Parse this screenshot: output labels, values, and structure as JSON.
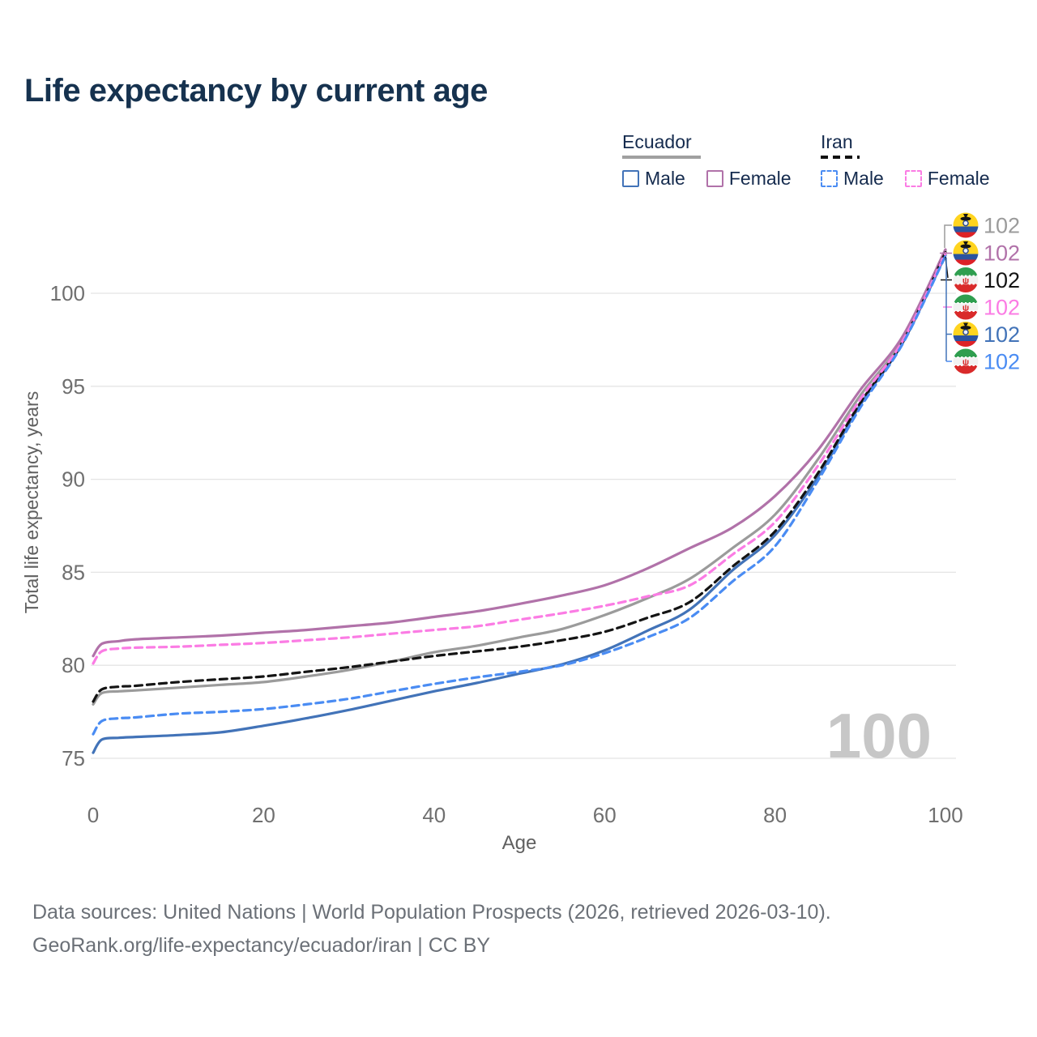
{
  "title": "Life expectancy by current age",
  "legend": {
    "groups": [
      {
        "label": "Ecuador",
        "line_style": "solid",
        "underline_color": "#a0a0a0",
        "items": [
          {
            "label": "Male",
            "color": "#4273b8",
            "dashed": false
          },
          {
            "label": "Female",
            "color": "#b172a9",
            "dashed": false
          }
        ]
      },
      {
        "label": "Iran",
        "line_style": "dashed",
        "underline_color": "#111111",
        "items": [
          {
            "label": "Male",
            "color": "#4a8cf3",
            "dashed": true
          },
          {
            "label": "Female",
            "color": "#fb7ce4",
            "dashed": true
          }
        ]
      }
    ]
  },
  "chart_data": {
    "type": "line",
    "title": "Life expectancy by current age",
    "xlabel": "Age",
    "ylabel": "Total life expectancy, years",
    "xlim": [
      0,
      100
    ],
    "ylim": [
      74,
      103
    ],
    "xticks": [
      0,
      20,
      40,
      60,
      80,
      100
    ],
    "yticks": [
      75,
      80,
      85,
      90,
      95,
      100
    ],
    "grid": true,
    "legend_position": "top-right",
    "watermark": "100",
    "x": [
      0,
      1,
      3,
      5,
      10,
      15,
      20,
      25,
      30,
      35,
      40,
      45,
      50,
      55,
      60,
      65,
      70,
      75,
      80,
      85,
      90,
      95,
      100
    ],
    "series": [
      {
        "name": "Ecuador Both sexes",
        "country": "ecuador",
        "sex": "both",
        "color": "#9b9b9b",
        "dashed": false,
        "end_label": "102",
        "values": [
          77.9,
          78.5,
          78.6,
          78.65,
          78.8,
          78.95,
          79.1,
          79.4,
          79.75,
          80.2,
          80.7,
          81.05,
          81.5,
          81.95,
          82.7,
          83.6,
          84.65,
          86.3,
          88.1,
          91.05,
          94.5,
          97.5,
          102.3
        ]
      },
      {
        "name": "Ecuador Female",
        "country": "ecuador",
        "sex": "female",
        "color": "#b172a9",
        "dashed": false,
        "end_label": "102",
        "values": [
          80.5,
          81.15,
          81.3,
          81.4,
          81.5,
          81.6,
          81.75,
          81.9,
          82.1,
          82.3,
          82.6,
          82.9,
          83.3,
          83.75,
          84.3,
          85.2,
          86.3,
          87.4,
          89.1,
          91.55,
          94.8,
          97.7,
          102.35
        ]
      },
      {
        "name": "Ecuador Male",
        "country": "ecuador",
        "sex": "male",
        "color": "#4273b8",
        "dashed": false,
        "end_label": "102",
        "values": [
          75.3,
          76.0,
          76.1,
          76.15,
          76.25,
          76.4,
          76.75,
          77.15,
          77.6,
          78.1,
          78.6,
          79.05,
          79.55,
          80.05,
          80.8,
          81.85,
          83.0,
          85.1,
          87.0,
          90.1,
          94.0,
          97.35,
          102.05
        ]
      },
      {
        "name": "Iran Both sexes",
        "country": "iran",
        "sex": "both",
        "color": "#141414",
        "dashed": true,
        "end_label": "102",
        "values": [
          78.05,
          78.7,
          78.85,
          78.9,
          79.1,
          79.25,
          79.4,
          79.65,
          79.9,
          80.2,
          80.5,
          80.75,
          81.0,
          81.35,
          81.8,
          82.55,
          83.4,
          85.3,
          87.2,
          90.3,
          94.1,
          97.4,
          102.2
        ]
      },
      {
        "name": "Iran Female",
        "country": "iran",
        "sex": "female",
        "color": "#fb7ce4",
        "dashed": true,
        "end_label": "102",
        "values": [
          80.1,
          80.75,
          80.9,
          80.95,
          81.0,
          81.1,
          81.2,
          81.35,
          81.5,
          81.7,
          81.9,
          82.1,
          82.45,
          82.8,
          83.2,
          83.7,
          84.3,
          85.95,
          87.7,
          90.7,
          94.3,
          97.45,
          102.15
        ]
      },
      {
        "name": "Iran Male",
        "country": "iran",
        "sex": "male",
        "color": "#4a8cf3",
        "dashed": true,
        "end_label": "102",
        "values": [
          76.3,
          77.0,
          77.15,
          77.2,
          77.4,
          77.5,
          77.65,
          77.9,
          78.2,
          78.6,
          79.0,
          79.35,
          79.65,
          80.0,
          80.65,
          81.5,
          82.55,
          84.5,
          86.4,
          89.9,
          93.85,
          97.3,
          102.0
        ]
      }
    ],
    "end_labels_order": [
      "Ecuador Both sexes",
      "Ecuador Female",
      "Iran Both sexes",
      "Iran Female",
      "Ecuador Male",
      "Iran Male"
    ]
  },
  "footer": {
    "line1": "Data sources: United Nations | World Population Prospects (2026, retrieved 2026-03-10).",
    "line2": "GeoRank.org/life-expectancy/ecuador/iran | CC BY"
  }
}
